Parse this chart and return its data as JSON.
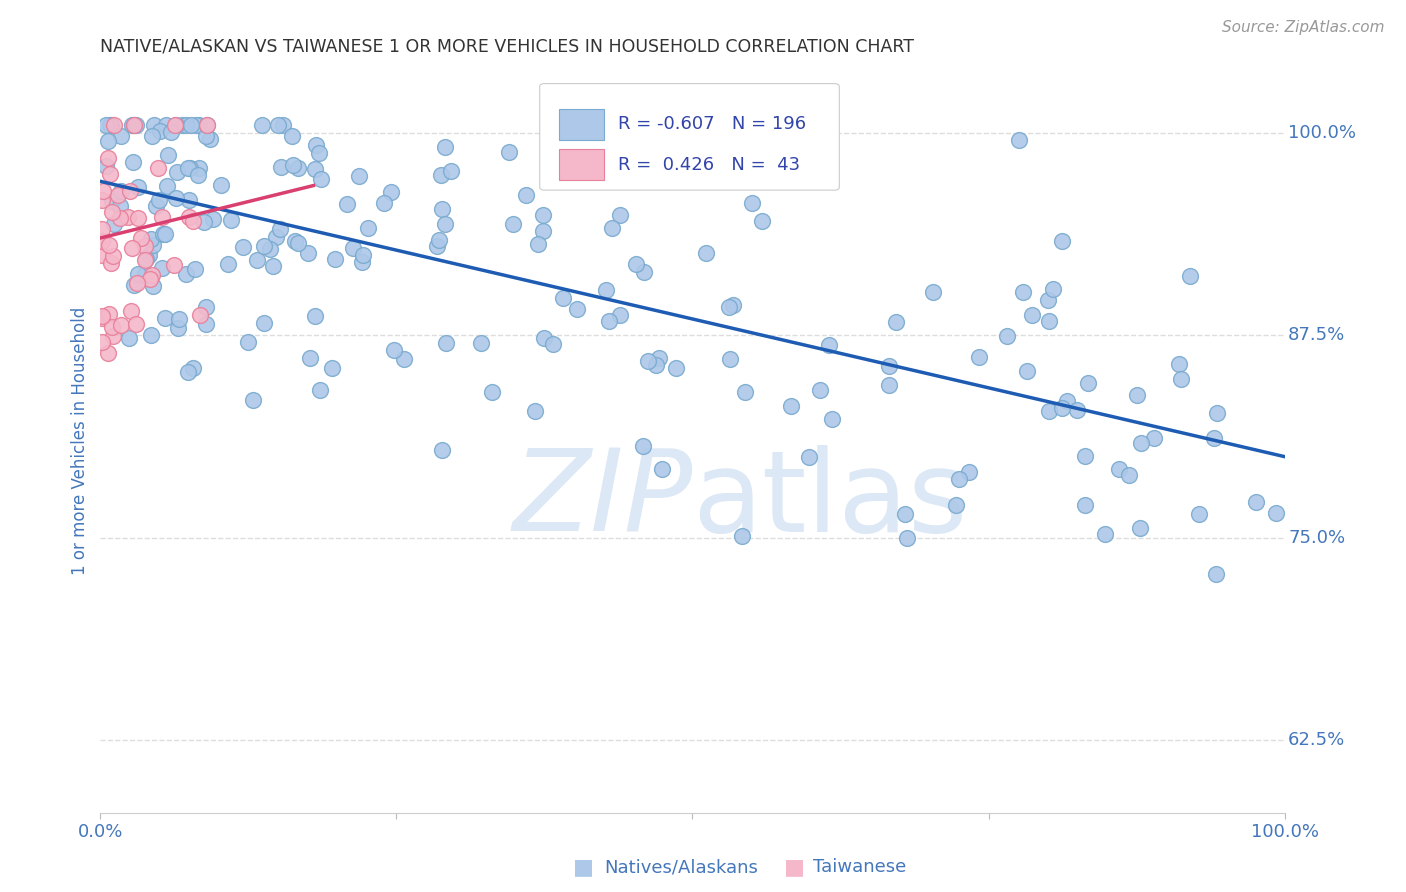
{
  "title": "NATIVE/ALASKAN VS TAIWANESE 1 OR MORE VEHICLES IN HOUSEHOLD CORRELATION CHART",
  "source": "Source: ZipAtlas.com",
  "ylabel": "1 or more Vehicles in Household",
  "ytick_labels": [
    "62.5%",
    "75.0%",
    "87.5%",
    "100.0%"
  ],
  "ytick_values": [
    0.625,
    0.75,
    0.875,
    1.0
  ],
  "legend_blue_r": "-0.607",
  "legend_blue_n": "196",
  "legend_pink_r": "0.426",
  "legend_pink_n": "43",
  "blue_color": "#adc8e8",
  "blue_edge": "#7aaacf",
  "blue_line_color": "#1e5cb3",
  "pink_color": "#f5b8cb",
  "pink_edge": "#e8809a",
  "pink_line_color": "#d94070",
  "watermark_color": "#dce8f5",
  "xlim": [
    0.0,
    1.0
  ],
  "ylim": [
    0.58,
    1.04
  ],
  "background_color": "#ffffff",
  "grid_color": "#dddddd",
  "title_color": "#333333",
  "tick_label_color": "#4477bb"
}
